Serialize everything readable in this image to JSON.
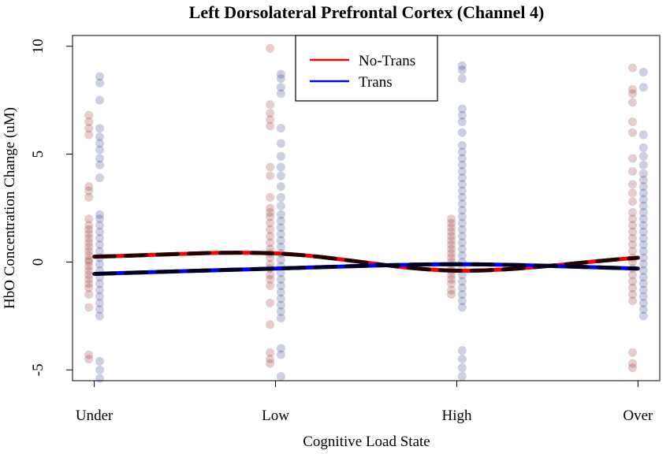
{
  "chart_data": {
    "type": "scatter",
    "title": "Left Dorsolateral Prefrontal Cortex (Channel 4)",
    "xlabel": "Cognitive Load State",
    "ylabel": "HbO Concentration Change (uM)",
    "categories": [
      "Under",
      "Low",
      "High",
      "Over"
    ],
    "x_positions": [
      1,
      2,
      3,
      4
    ],
    "xlim": [
      0.88,
      4.12
    ],
    "ylim": [
      -5.5,
      10.5
    ],
    "yticks": [
      -5,
      0,
      5,
      10
    ],
    "ytick_labels": [
      "-5",
      "0",
      "5",
      "10"
    ],
    "legend": {
      "position": "top-center",
      "entries": [
        "No-Trans",
        "Trans"
      ]
    },
    "colors": {
      "no_trans": "#8b1a1a",
      "trans": "#1a237e",
      "no_trans_line": "#ff0000",
      "trans_line": "#0000ff",
      "dashed_overlay": "#000000"
    },
    "series": [
      {
        "name": "No-Trans",
        "key": "no_trans",
        "offset": -0.03,
        "points": [
          [
            -4.5,
            -4.3,
            -2.1,
            -1.5,
            -1.2,
            -1.0,
            -0.8,
            -0.6,
            -0.4,
            -0.2,
            0.0,
            0.1,
            0.3,
            0.5,
            0.7,
            0.9,
            1.1,
            1.3,
            1.5,
            1.7,
            2.0,
            3.0,
            3.3,
            3.5,
            5.9,
            6.2,
            6.5,
            6.8
          ],
          [
            -4.7,
            -4.5,
            -4.2,
            -2.9,
            -1.9,
            -1.1,
            -0.8,
            -0.6,
            -0.3,
            -0.1,
            0.2,
            0.4,
            0.6,
            0.9,
            1.2,
            1.5,
            1.8,
            2.1,
            2.3,
            2.5,
            3.0,
            4.0,
            4.4,
            6.3,
            6.6,
            6.9,
            7.3,
            9.9
          ],
          [
            -1.5,
            -1.3,
            -1.0,
            -0.8,
            -0.6,
            -0.4,
            -0.2,
            0.0,
            0.2,
            0.4,
            0.6,
            0.8,
            1.0,
            1.2,
            1.4,
            1.6,
            1.8,
            2.0
          ],
          [
            -4.9,
            -4.7,
            -4.2,
            -1.8,
            -1.5,
            -1.2,
            -0.9,
            -0.6,
            -0.3,
            0.0,
            0.2,
            0.5,
            0.8,
            1.1,
            1.4,
            1.7,
            2.0,
            2.3,
            2.8,
            3.2,
            3.6,
            4.2,
            4.8,
            6.0,
            6.5,
            7.4,
            7.8,
            8.0,
            9.0
          ]
        ],
        "trend": [
          0.25,
          0.4,
          -0.4,
          0.2
        ]
      },
      {
        "name": "Trans",
        "key": "trans",
        "offset": 0.03,
        "points": [
          [
            -5.4,
            -5.0,
            -4.6,
            -2.5,
            -2.2,
            -1.9,
            -1.6,
            -1.3,
            -1.0,
            -0.7,
            -0.4,
            -0.1,
            0.2,
            0.5,
            0.8,
            1.1,
            1.4,
            1.7,
            2.0,
            2.2,
            3.9,
            4.5,
            4.8,
            5.2,
            5.5,
            5.8,
            6.2,
            7.5,
            8.3,
            8.6
          ],
          [
            -5.3,
            -4.3,
            -4.0,
            -2.6,
            -2.3,
            -2.0,
            -1.7,
            -1.4,
            -1.1,
            -0.8,
            -0.5,
            -0.2,
            0.1,
            0.4,
            0.7,
            1.0,
            1.3,
            1.6,
            1.9,
            2.2,
            2.6,
            3.0,
            3.5,
            4.0,
            4.4,
            4.9,
            5.5,
            6.2,
            7.8,
            8.1,
            8.5,
            8.7
          ],
          [
            -5.3,
            -4.9,
            -4.5,
            -4.1,
            -2.1,
            -1.8,
            -1.5,
            -1.2,
            -0.9,
            -0.6,
            -0.3,
            0.0,
            0.3,
            0.6,
            0.9,
            1.2,
            1.5,
            1.8,
            2.1,
            2.4,
            2.7,
            3.0,
            3.3,
            3.6,
            3.9,
            4.2,
            4.5,
            4.8,
            5.1,
            5.4,
            6.0,
            6.5,
            6.8,
            7.1,
            8.5,
            8.9,
            9.1
          ],
          [
            -2.5,
            -2.2,
            -1.9,
            -1.6,
            -1.3,
            -1.0,
            -0.7,
            -0.4,
            -0.1,
            0.2,
            0.5,
            0.8,
            1.1,
            1.4,
            1.7,
            2.0,
            2.3,
            2.6,
            2.9,
            3.2,
            3.5,
            3.8,
            4.1,
            4.5,
            4.9,
            5.3,
            5.9,
            8.1,
            8.8
          ]
        ],
        "trend": [
          -0.55,
          -0.3,
          -0.1,
          -0.3
        ]
      }
    ]
  }
}
